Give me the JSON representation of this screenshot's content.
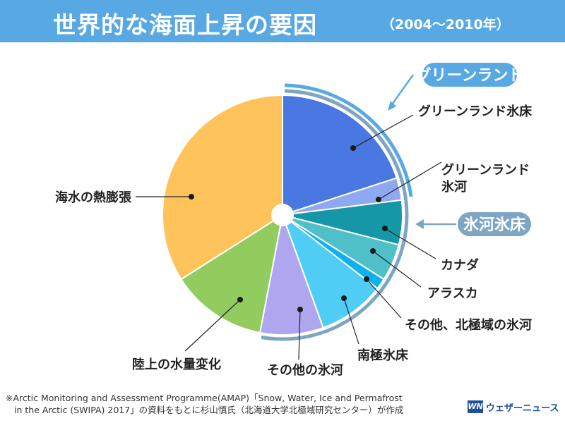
{
  "header": {
    "title": "世界的な海面上昇の要因",
    "period": "（2004〜2010年）",
    "background_color": "#58a9e3"
  },
  "chart_data": {
    "type": "pie",
    "title": "世界的な海面上昇の要因（2004〜2010年）",
    "slices": [
      {
        "label": "グリーンランド氷床",
        "value": 20.0,
        "color": "#4a78e2"
      },
      {
        "label": "グリーンランド氷河",
        "value": 3.0,
        "color": "#8fa8f2"
      },
      {
        "label": "カナダ",
        "value": 6.0,
        "color": "#1597a8"
      },
      {
        "label": "アラスカ",
        "value": 5.0,
        "color": "#4fbfc8"
      },
      {
        "label": "その他、北極域の氷河",
        "value": 1.5,
        "color": "#0fb0ef"
      },
      {
        "label": "南極氷床",
        "value": 9.0,
        "color": "#4fcdf5"
      },
      {
        "label": "その他の氷河",
        "value": 8.5,
        "color": "#aea6ee"
      },
      {
        "label": "陸上の水量変化",
        "value": 13.0,
        "color": "#92cc5f"
      },
      {
        "label": "海水の熱膨張",
        "value": 34.0,
        "color": "#fec45b"
      }
    ],
    "groups": [
      {
        "name": "グリーンランド",
        "members": [
          "グリーンランド氷床",
          "グリーンランド氷河"
        ],
        "color": "#58a9e3"
      },
      {
        "name": "氷河氷床",
        "members": [
          "グリーンランド氷床",
          "グリーンランド氷河",
          "カナダ",
          "アラスカ",
          "その他、北極域の氷河",
          "南極氷床",
          "その他の氷河"
        ],
        "color": "#7ea6c4"
      }
    ]
  },
  "footnote": {
    "line1": "※Arctic Monitoring and Assessment Programme(AMAP)「Snow, Water, Ice and Permafrost",
    "line2": "in the Arctic (SWIPA) 2017」の資料をもとに杉山慎氏（北海道大学北極域研究センター）が作成"
  },
  "logo": {
    "mark": "WN",
    "text": "ウェザーニュース"
  }
}
